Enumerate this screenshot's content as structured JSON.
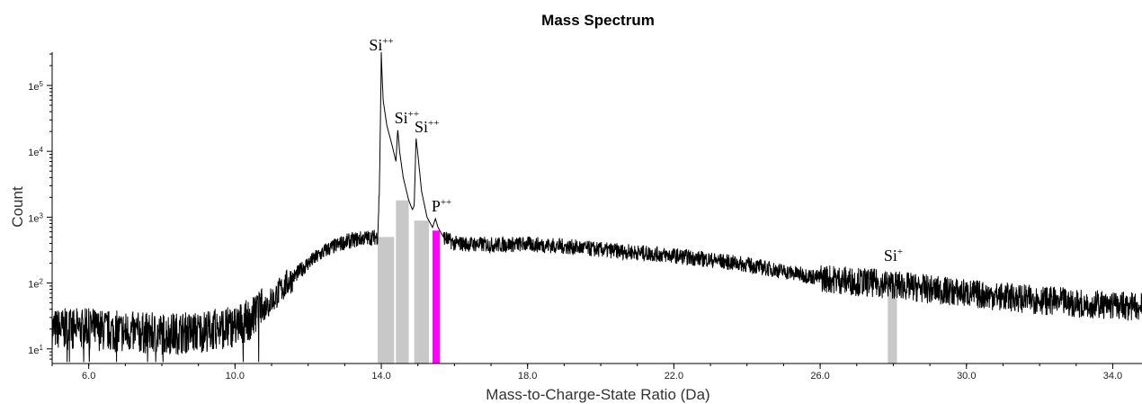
{
  "chart_data": {
    "type": "line",
    "title": "Mass Spectrum",
    "xlabel": "Mass-to-Charge-State Ratio (Da)",
    "ylabel": "Count",
    "xlim": [
      5.0,
      34.8
    ],
    "ylim": [
      6,
      320000
    ],
    "yscale": "log",
    "x_ticks": [
      {
        "value": 6,
        "label": "6.0"
      },
      {
        "value": 10,
        "label": "10.0"
      },
      {
        "value": 14,
        "label": "14.0"
      },
      {
        "value": 18,
        "label": "18.0"
      },
      {
        "value": 22,
        "label": "22.0"
      },
      {
        "value": 26,
        "label": "26.0"
      },
      {
        "value": 30,
        "label": "30.0"
      },
      {
        "value": 34,
        "label": "34.0"
      }
    ],
    "y_ticks": [
      {
        "value": 10,
        "base": "1e",
        "exp": "1"
      },
      {
        "value": 100,
        "base": "1e",
        "exp": "2"
      },
      {
        "value": 1000,
        "base": "1e",
        "exp": "3"
      },
      {
        "value": 10000,
        "base": "1e",
        "exp": "4"
      },
      {
        "value": 100000,
        "base": "1e",
        "exp": "5"
      }
    ],
    "series": [
      {
        "color": "#000000",
        "points": [
          [
            5.0,
            20
          ],
          [
            6.0,
            20
          ],
          [
            7.0,
            18
          ],
          [
            8.0,
            17
          ],
          [
            9.0,
            18
          ],
          [
            10.0,
            22
          ],
          [
            10.5,
            30
          ],
          [
            11.0,
            55
          ],
          [
            11.5,
            110
          ],
          [
            12.0,
            200
          ],
          [
            12.5,
            320
          ],
          [
            13.0,
            420
          ],
          [
            13.5,
            480
          ],
          [
            13.9,
            500
          ],
          [
            13.95,
            3000
          ],
          [
            14.0,
            280000
          ],
          [
            14.05,
            60000
          ],
          [
            14.15,
            25000
          ],
          [
            14.3,
            12000
          ],
          [
            14.4,
            7000
          ],
          [
            14.45,
            22000
          ],
          [
            14.5,
            10000
          ],
          [
            14.6,
            4000
          ],
          [
            14.75,
            1800
          ],
          [
            14.85,
            1300
          ],
          [
            14.9,
            1500
          ],
          [
            14.95,
            16000
          ],
          [
            15.0,
            9000
          ],
          [
            15.1,
            2500
          ],
          [
            15.25,
            1000
          ],
          [
            15.4,
            700
          ],
          [
            15.48,
            950
          ],
          [
            15.55,
            700
          ],
          [
            15.7,
            500
          ],
          [
            16.0,
            400
          ],
          [
            17.0,
            380
          ],
          [
            18.0,
            390
          ],
          [
            19.0,
            360
          ],
          [
            20.0,
            320
          ],
          [
            21.0,
            290
          ],
          [
            22.0,
            260
          ],
          [
            23.0,
            225
          ],
          [
            24.0,
            190
          ],
          [
            25.0,
            150
          ],
          [
            26.0,
            120
          ],
          [
            27.0,
            105
          ],
          [
            27.95,
            95
          ],
          [
            28.0,
            95
          ],
          [
            29.0,
            80
          ],
          [
            30.0,
            70
          ],
          [
            31.0,
            62
          ],
          [
            32.0,
            55
          ],
          [
            33.0,
            50
          ],
          [
            34.0,
            46
          ],
          [
            34.8,
            43
          ]
        ]
      }
    ],
    "ranges": [
      {
        "start": 13.9,
        "end": 14.35,
        "color": "#c8c8c8"
      },
      {
        "start": 14.4,
        "end": 14.75,
        "color": "#c8c8c8"
      },
      {
        "start": 14.9,
        "end": 15.3,
        "color": "#c8c8c8"
      },
      {
        "start": 15.4,
        "end": 15.6,
        "color": "#ff00ff"
      },
      {
        "start": 27.85,
        "end": 28.1,
        "color": "#c8c8c8"
      }
    ],
    "annotations": [
      {
        "base": "Si",
        "sup": "++",
        "x": 14.0,
        "y": 280000
      },
      {
        "base": "Si",
        "sup": "++",
        "x": 14.5,
        "y": 22000
      },
      {
        "base": "Si",
        "sup": "++",
        "x": 15.0,
        "y": 16000
      },
      {
        "base": "P",
        "sup": "++",
        "x": 15.5,
        "y": 950
      },
      {
        "base": "Si",
        "sup": "+",
        "x": 28.0,
        "y": 95
      }
    ]
  }
}
